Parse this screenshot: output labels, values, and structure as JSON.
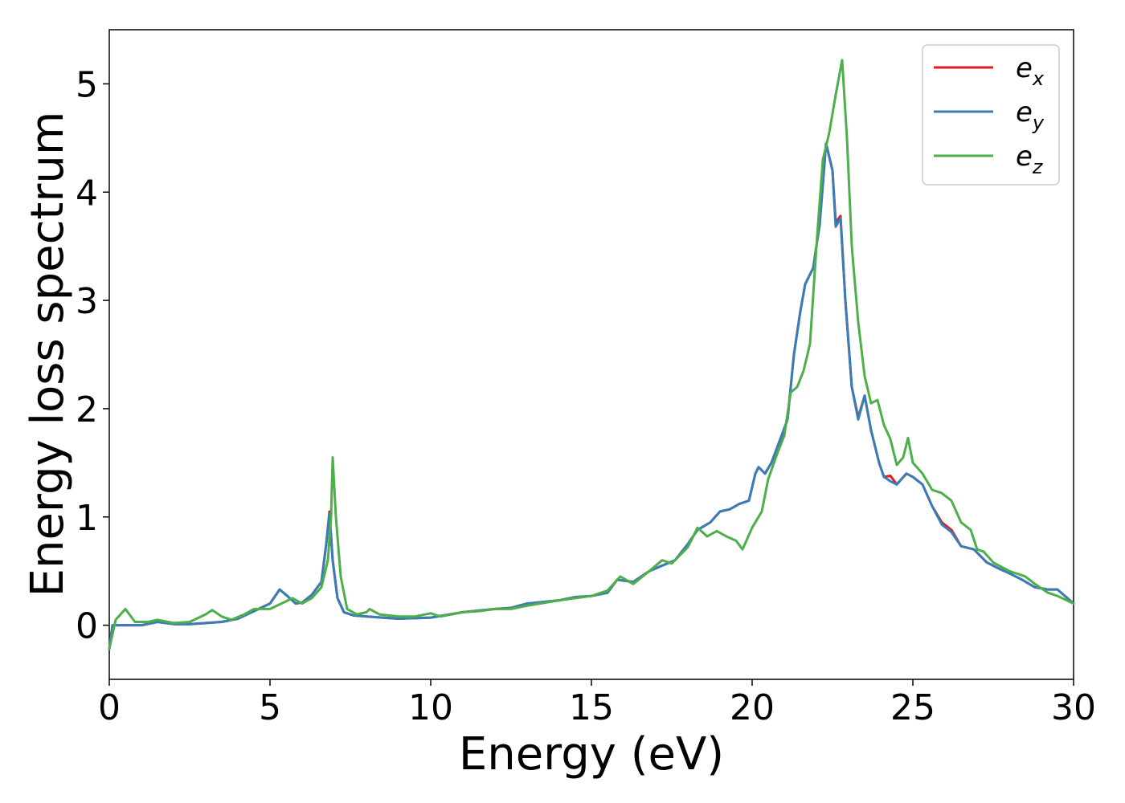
{
  "chart_data": {
    "type": "line",
    "title": "",
    "xlabel": "Energy (eV)",
    "ylabel": "Energy loss spectrum",
    "xlim": [
      0,
      30
    ],
    "ylim": [
      -0.5,
      5.5
    ],
    "xticks": [
      "0",
      "5",
      "10",
      "15",
      "20",
      "25",
      "30"
    ],
    "yticks": [
      "0",
      "1",
      "2",
      "3",
      "4",
      "5"
    ],
    "grid": false,
    "legend_position": "top-right",
    "series": [
      {
        "name": "x",
        "legend_base": "e",
        "legend_sub": "x",
        "color": "#e41a1c",
        "points": [
          [
            0,
            -0.22
          ],
          [
            0.1,
            0.0
          ],
          [
            0.5,
            0.0
          ],
          [
            1,
            0.0
          ],
          [
            1.5,
            0.03
          ],
          [
            2,
            0.01
          ],
          [
            2.5,
            0.01
          ],
          [
            3,
            0.02
          ],
          [
            3.5,
            0.03
          ],
          [
            4,
            0.06
          ],
          [
            4.5,
            0.13
          ],
          [
            5,
            0.2
          ],
          [
            5.3,
            0.33
          ],
          [
            5.5,
            0.28
          ],
          [
            5.8,
            0.2
          ],
          [
            6,
            0.21
          ],
          [
            6.3,
            0.28
          ],
          [
            6.6,
            0.4
          ],
          [
            6.75,
            0.75
          ],
          [
            6.85,
            1.05
          ],
          [
            6.95,
            0.6
          ],
          [
            7.1,
            0.25
          ],
          [
            7.3,
            0.12
          ],
          [
            7.6,
            0.09
          ],
          [
            8,
            0.08
          ],
          [
            9,
            0.06
          ],
          [
            10,
            0.07
          ],
          [
            11,
            0.12
          ],
          [
            12,
            0.15
          ],
          [
            12.5,
            0.16
          ],
          [
            13,
            0.2
          ],
          [
            14,
            0.23
          ],
          [
            14.5,
            0.26
          ],
          [
            15,
            0.27
          ],
          [
            15.5,
            0.3
          ],
          [
            15.8,
            0.42
          ],
          [
            16.3,
            0.4
          ],
          [
            16.8,
            0.5
          ],
          [
            17.2,
            0.55
          ],
          [
            17.6,
            0.6
          ],
          [
            18,
            0.75
          ],
          [
            18.3,
            0.88
          ],
          [
            18.7,
            0.95
          ],
          [
            19,
            1.05
          ],
          [
            19.3,
            1.07
          ],
          [
            19.6,
            1.12
          ],
          [
            19.9,
            1.15
          ],
          [
            20.1,
            1.4
          ],
          [
            20.2,
            1.46
          ],
          [
            20.4,
            1.4
          ],
          [
            20.6,
            1.5
          ],
          [
            20.9,
            1.72
          ],
          [
            21.1,
            1.9
          ],
          [
            21.3,
            2.5
          ],
          [
            21.5,
            2.9
          ],
          [
            21.65,
            3.15
          ],
          [
            21.9,
            3.3
          ],
          [
            22.1,
            3.7
          ],
          [
            22.3,
            4.45
          ],
          [
            22.5,
            4.2
          ],
          [
            22.6,
            3.72
          ],
          [
            22.75,
            3.78
          ],
          [
            22.9,
            3.0
          ],
          [
            23.1,
            2.2
          ],
          [
            23.3,
            1.92
          ],
          [
            23.5,
            2.12
          ],
          [
            23.7,
            1.8
          ],
          [
            23.95,
            1.5
          ],
          [
            24.1,
            1.37
          ],
          [
            24.3,
            1.38
          ],
          [
            24.5,
            1.3
          ],
          [
            24.8,
            1.4
          ],
          [
            25,
            1.37
          ],
          [
            25.3,
            1.3
          ],
          [
            25.6,
            1.1
          ],
          [
            25.9,
            0.95
          ],
          [
            26.2,
            0.88
          ],
          [
            26.5,
            0.73
          ],
          [
            26.9,
            0.7
          ],
          [
            27.3,
            0.58
          ],
          [
            27.7,
            0.52
          ],
          [
            28,
            0.48
          ],
          [
            28.4,
            0.42
          ],
          [
            28.8,
            0.35
          ],
          [
            29.2,
            0.33
          ],
          [
            29.5,
            0.33
          ],
          [
            30,
            0.2
          ]
        ]
      },
      {
        "name": "y",
        "legend_base": "e",
        "legend_sub": "y",
        "color": "#377eb8",
        "points": [
          [
            0,
            -0.22
          ],
          [
            0.1,
            0.0
          ],
          [
            0.5,
            0.0
          ],
          [
            1,
            0.0
          ],
          [
            1.5,
            0.03
          ],
          [
            2,
            0.01
          ],
          [
            2.5,
            0.01
          ],
          [
            3,
            0.02
          ],
          [
            3.5,
            0.03
          ],
          [
            4,
            0.06
          ],
          [
            4.5,
            0.13
          ],
          [
            5,
            0.2
          ],
          [
            5.3,
            0.33
          ],
          [
            5.5,
            0.28
          ],
          [
            5.8,
            0.2
          ],
          [
            6,
            0.21
          ],
          [
            6.3,
            0.28
          ],
          [
            6.6,
            0.4
          ],
          [
            6.75,
            0.75
          ],
          [
            6.85,
            1.03
          ],
          [
            6.95,
            0.6
          ],
          [
            7.1,
            0.25
          ],
          [
            7.3,
            0.12
          ],
          [
            7.6,
            0.09
          ],
          [
            8,
            0.08
          ],
          [
            9,
            0.06
          ],
          [
            10,
            0.07
          ],
          [
            11,
            0.12
          ],
          [
            12,
            0.15
          ],
          [
            12.5,
            0.16
          ],
          [
            13,
            0.2
          ],
          [
            14,
            0.23
          ],
          [
            14.5,
            0.26
          ],
          [
            15,
            0.27
          ],
          [
            15.5,
            0.3
          ],
          [
            15.8,
            0.42
          ],
          [
            16.3,
            0.4
          ],
          [
            16.8,
            0.5
          ],
          [
            17.2,
            0.55
          ],
          [
            17.6,
            0.6
          ],
          [
            18,
            0.75
          ],
          [
            18.3,
            0.88
          ],
          [
            18.7,
            0.95
          ],
          [
            19,
            1.05
          ],
          [
            19.3,
            1.07
          ],
          [
            19.6,
            1.12
          ],
          [
            19.9,
            1.15
          ],
          [
            20.1,
            1.4
          ],
          [
            20.2,
            1.46
          ],
          [
            20.4,
            1.4
          ],
          [
            20.6,
            1.5
          ],
          [
            20.9,
            1.74
          ],
          [
            21.1,
            1.9
          ],
          [
            21.3,
            2.5
          ],
          [
            21.5,
            2.9
          ],
          [
            21.65,
            3.15
          ],
          [
            21.9,
            3.3
          ],
          [
            22.1,
            3.7
          ],
          [
            22.3,
            4.45
          ],
          [
            22.5,
            4.2
          ],
          [
            22.6,
            3.68
          ],
          [
            22.75,
            3.76
          ],
          [
            22.9,
            3.0
          ],
          [
            23.1,
            2.2
          ],
          [
            23.3,
            1.9
          ],
          [
            23.5,
            2.12
          ],
          [
            23.7,
            1.8
          ],
          [
            23.95,
            1.5
          ],
          [
            24.1,
            1.37
          ],
          [
            24.3,
            1.33
          ],
          [
            24.5,
            1.3
          ],
          [
            24.8,
            1.4
          ],
          [
            25,
            1.37
          ],
          [
            25.3,
            1.3
          ],
          [
            25.6,
            1.1
          ],
          [
            25.9,
            0.93
          ],
          [
            26.2,
            0.86
          ],
          [
            26.5,
            0.73
          ],
          [
            26.9,
            0.7
          ],
          [
            27.3,
            0.58
          ],
          [
            27.7,
            0.52
          ],
          [
            28,
            0.48
          ],
          [
            28.4,
            0.42
          ],
          [
            28.8,
            0.35
          ],
          [
            29.2,
            0.33
          ],
          [
            29.5,
            0.33
          ],
          [
            30,
            0.2
          ]
        ]
      },
      {
        "name": "z",
        "legend_base": "e",
        "legend_sub": "z",
        "color": "#4daf4a",
        "points": [
          [
            0,
            -0.22
          ],
          [
            0.2,
            0.05
          ],
          [
            0.5,
            0.15
          ],
          [
            0.8,
            0.03
          ],
          [
            1.2,
            0.03
          ],
          [
            1.5,
            0.05
          ],
          [
            2,
            0.02
          ],
          [
            2.5,
            0.03
          ],
          [
            3,
            0.1
          ],
          [
            3.2,
            0.14
          ],
          [
            3.5,
            0.08
          ],
          [
            3.8,
            0.05
          ],
          [
            4.2,
            0.1
          ],
          [
            4.5,
            0.15
          ],
          [
            5,
            0.15
          ],
          [
            5.5,
            0.22
          ],
          [
            5.7,
            0.25
          ],
          [
            6,
            0.2
          ],
          [
            6.3,
            0.25
          ],
          [
            6.6,
            0.35
          ],
          [
            6.8,
            0.6
          ],
          [
            6.9,
            1.0
          ],
          [
            6.95,
            1.55
          ],
          [
            7.05,
            1.0
          ],
          [
            7.2,
            0.45
          ],
          [
            7.4,
            0.15
          ],
          [
            7.7,
            0.1
          ],
          [
            8,
            0.12
          ],
          [
            8.1,
            0.15
          ],
          [
            8.4,
            0.1
          ],
          [
            9,
            0.08
          ],
          [
            9.5,
            0.08
          ],
          [
            10,
            0.11
          ],
          [
            10.3,
            0.08
          ],
          [
            11,
            0.12
          ],
          [
            11.5,
            0.13
          ],
          [
            12,
            0.15
          ],
          [
            12.5,
            0.15
          ],
          [
            13,
            0.18
          ],
          [
            14,
            0.23
          ],
          [
            14.5,
            0.25
          ],
          [
            15,
            0.27
          ],
          [
            15.5,
            0.32
          ],
          [
            15.9,
            0.45
          ],
          [
            16.3,
            0.38
          ],
          [
            16.8,
            0.5
          ],
          [
            17.2,
            0.6
          ],
          [
            17.5,
            0.57
          ],
          [
            18,
            0.72
          ],
          [
            18.3,
            0.9
          ],
          [
            18.6,
            0.82
          ],
          [
            18.9,
            0.87
          ],
          [
            19.2,
            0.82
          ],
          [
            19.5,
            0.78
          ],
          [
            19.7,
            0.7
          ],
          [
            20,
            0.9
          ],
          [
            20.3,
            1.05
          ],
          [
            20.5,
            1.35
          ],
          [
            20.8,
            1.6
          ],
          [
            21,
            1.75
          ],
          [
            21.2,
            2.15
          ],
          [
            21.4,
            2.2
          ],
          [
            21.6,
            2.35
          ],
          [
            21.8,
            2.6
          ],
          [
            22,
            3.5
          ],
          [
            22.2,
            4.3
          ],
          [
            22.4,
            4.55
          ],
          [
            22.6,
            4.9
          ],
          [
            22.8,
            5.22
          ],
          [
            22.95,
            4.5
          ],
          [
            23.1,
            3.5
          ],
          [
            23.3,
            2.8
          ],
          [
            23.5,
            2.3
          ],
          [
            23.7,
            2.05
          ],
          [
            23.9,
            2.08
          ],
          [
            24.1,
            1.85
          ],
          [
            24.3,
            1.72
          ],
          [
            24.5,
            1.48
          ],
          [
            24.7,
            1.55
          ],
          [
            24.85,
            1.73
          ],
          [
            25,
            1.5
          ],
          [
            25.3,
            1.4
          ],
          [
            25.6,
            1.25
          ],
          [
            25.9,
            1.22
          ],
          [
            26.2,
            1.15
          ],
          [
            26.5,
            0.95
          ],
          [
            26.8,
            0.88
          ],
          [
            27,
            0.7
          ],
          [
            27.2,
            0.68
          ],
          [
            27.5,
            0.58
          ],
          [
            28,
            0.5
          ],
          [
            28.5,
            0.45
          ],
          [
            28.8,
            0.38
          ],
          [
            29.2,
            0.3
          ],
          [
            29.5,
            0.27
          ],
          [
            30,
            0.2
          ]
        ]
      }
    ]
  }
}
